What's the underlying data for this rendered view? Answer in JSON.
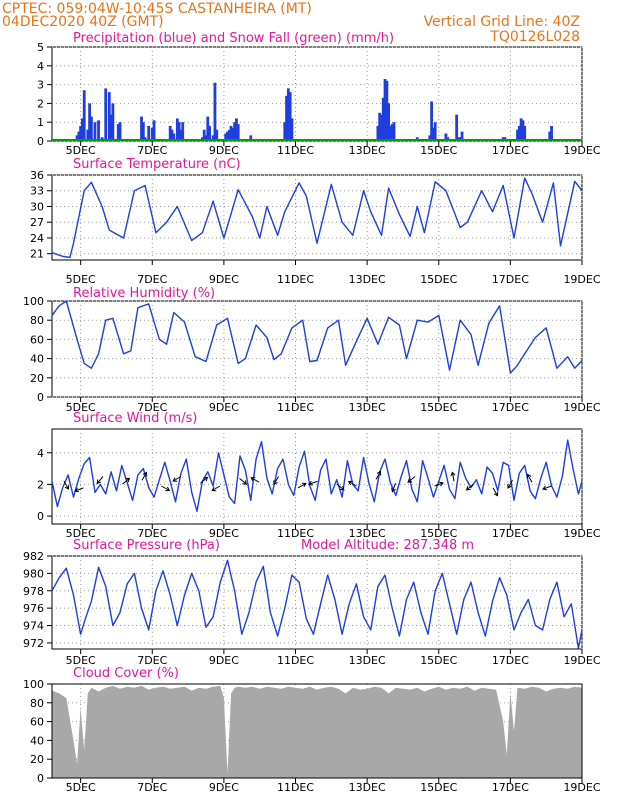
{
  "header": {
    "line1": "CPTEC:   059:04W-10:45S   CASTANHEIRA (MT)",
    "line2": "04DEC2020 40Z (GMT)",
    "grid_note": "Vertical Grid Line: 40Z",
    "code": "TQ0126L028"
  },
  "colors": {
    "series": "#1f3ee0",
    "snow": "#00a000",
    "cloud": "#a8a8a8",
    "title": "#e0189a",
    "header": "#e8741a"
  },
  "x_axis": {
    "ticks": [
      "5DEC",
      "7DEC",
      "9DEC",
      "11DEC",
      "13DEC",
      "15DEC",
      "17DEC",
      "19DEC"
    ],
    "tick_days": [
      5,
      7,
      9,
      11,
      13,
      15,
      17,
      19
    ],
    "range_days": [
      4.2,
      19.0
    ],
    "grid": true
  },
  "chart_data": [
    {
      "type": "bar",
      "title": "Precipitation (blue) and Snow Fall (green) (mm/h)",
      "ylim": [
        0,
        5
      ],
      "yticks": [
        "0",
        "1",
        "2",
        "3",
        "4",
        "5"
      ],
      "series": [
        {
          "name": "Precipitation",
          "x": [
            4.9,
            4.95,
            5.0,
            5.05,
            5.1,
            5.2,
            5.25,
            5.3,
            5.4,
            5.5,
            5.6,
            5.7,
            5.8,
            5.85,
            5.9,
            6.05,
            6.1,
            6.7,
            6.75,
            6.8,
            6.85,
            6.9,
            7.0,
            7.05,
            7.5,
            7.55,
            7.6,
            7.7,
            7.75,
            7.8,
            7.85,
            8.4,
            8.45,
            8.5,
            8.55,
            8.6,
            8.7,
            8.75,
            8.8,
            9.05,
            9.1,
            9.15,
            9.2,
            9.25,
            9.3,
            9.35,
            9.4,
            9.75,
            10.7,
            10.75,
            10.8,
            10.85,
            10.9,
            12.0,
            13.3,
            13.35,
            13.4,
            13.45,
            13.5,
            13.55,
            13.6,
            13.65,
            13.7,
            13.75,
            14.4,
            14.75,
            14.8,
            14.85,
            14.9,
            15.2,
            15.25,
            15.5,
            15.55,
            15.6,
            15.65,
            16.8,
            16.85,
            17.2,
            17.25,
            17.3,
            17.35,
            17.4,
            17.9,
            18.1,
            18.15
          ],
          "values": [
            0.3,
            0.5,
            0.8,
            1.2,
            2.7,
            0.6,
            2.0,
            1.3,
            1.0,
            1.1,
            0.2,
            2.8,
            2.6,
            1.4,
            2.0,
            0.9,
            1.0,
            1.3,
            1.0,
            0.2,
            0.1,
            0.8,
            0.7,
            1.1,
            0.8,
            0.6,
            0.4,
            1.2,
            1.0,
            0.6,
            1.0,
            0.2,
            0.6,
            0.3,
            1.3,
            0.8,
            0.3,
            3.1,
            0.6,
            0.4,
            0.5,
            0.6,
            0.8,
            0.7,
            1.0,
            1.2,
            0.9,
            0.3,
            1.0,
            2.4,
            2.8,
            2.6,
            1.2,
            0.1,
            0.8,
            1.5,
            1.4,
            2.3,
            3.3,
            3.2,
            2.0,
            0.8,
            0.9,
            1.0,
            0.2,
            0.3,
            2.1,
            0.7,
            1.0,
            0.4,
            0.2,
            1.4,
            0.2,
            0.2,
            0.5,
            0.2,
            0.2,
            0.6,
            0.8,
            1.2,
            1.1,
            0.8,
            0.1,
            0.5,
            0.8
          ]
        },
        {
          "name": "Snow Fall",
          "values": [
            0
          ]
        }
      ]
    },
    {
      "type": "line",
      "title": "Surface Temperature (nC)",
      "ylim": [
        19.8,
        36
      ],
      "yticks": [
        "21",
        "24",
        "27",
        "30",
        "33",
        "36"
      ],
      "x": [
        4.2,
        4.5,
        4.7,
        4.8,
        5.1,
        5.3,
        5.6,
        5.8,
        6.2,
        6.5,
        6.8,
        7.1,
        7.4,
        7.7,
        8.1,
        8.4,
        8.7,
        9.0,
        9.4,
        9.8,
        10.0,
        10.2,
        10.5,
        10.7,
        11.1,
        11.3,
        11.6,
        12.0,
        12.3,
        12.6,
        12.9,
        13.1,
        13.4,
        13.6,
        13.9,
        14.2,
        14.4,
        14.6,
        14.9,
        15.2,
        15.6,
        15.8,
        16.2,
        16.5,
        16.8,
        17.1,
        17.4,
        17.6,
        17.9,
        18.2,
        18.4,
        18.8,
        19.0
      ],
      "values": [
        21.2,
        20.5,
        20.3,
        23.0,
        33.0,
        34.6,
        30.0,
        25.5,
        24.0,
        33.0,
        34.0,
        25.0,
        27.0,
        30.0,
        23.5,
        25.0,
        31.0,
        24.0,
        33.2,
        28.0,
        24.0,
        30.0,
        24.5,
        29.0,
        34.5,
        32.0,
        23.0,
        34.2,
        27.0,
        24.5,
        33.0,
        29.0,
        24.5,
        33.5,
        28.5,
        24.3,
        30.0,
        25.0,
        34.7,
        33.0,
        26.0,
        27.0,
        33.0,
        29.0,
        34.0,
        24.0,
        35.4,
        32.5,
        27.0,
        34.5,
        22.5,
        34.8,
        33.0
      ]
    },
    {
      "type": "line",
      "title": "Relative Humidity (%)",
      "ylim": [
        0,
        100
      ],
      "yticks": [
        "0",
        "20",
        "40",
        "60",
        "80",
        "100"
      ],
      "x": [
        4.2,
        4.4,
        4.6,
        4.9,
        5.1,
        5.3,
        5.5,
        5.7,
        5.9,
        6.2,
        6.4,
        6.6,
        6.9,
        7.2,
        7.4,
        7.6,
        7.9,
        8.2,
        8.5,
        8.8,
        9.1,
        9.4,
        9.6,
        9.9,
        10.2,
        10.4,
        10.6,
        10.9,
        11.2,
        11.4,
        11.6,
        11.9,
        12.2,
        12.4,
        12.7,
        13.0,
        13.3,
        13.6,
        13.9,
        14.1,
        14.4,
        14.7,
        15.0,
        15.3,
        15.6,
        15.9,
        16.1,
        16.4,
        16.7,
        17.0,
        17.2,
        17.4,
        17.7,
        18.0,
        18.3,
        18.6,
        18.8,
        19.0
      ],
      "values": [
        85,
        95,
        100,
        60,
        35,
        30,
        45,
        80,
        82,
        45,
        48,
        93,
        97,
        60,
        55,
        88,
        78,
        42,
        37,
        75,
        82,
        35,
        40,
        75,
        62,
        39,
        45,
        72,
        80,
        37,
        38,
        72,
        80,
        33,
        58,
        82,
        55,
        83,
        75,
        40,
        80,
        78,
        85,
        28,
        80,
        65,
        33,
        77,
        95,
        25,
        33,
        45,
        62,
        72,
        30,
        42,
        30,
        38
      ]
    },
    {
      "type": "line",
      "title": "Surface Wind (m/s)",
      "ylim": [
        -0.5,
        5.5
      ],
      "yticks": [
        "0",
        "2",
        "4"
      ],
      "x": [
        4.2,
        4.35,
        4.5,
        4.65,
        4.8,
        4.95,
        5.1,
        5.25,
        5.4,
        5.55,
        5.7,
        5.85,
        6.0,
        6.15,
        6.3,
        6.45,
        6.6,
        6.75,
        6.9,
        7.05,
        7.2,
        7.35,
        7.5,
        7.65,
        7.8,
        7.95,
        8.1,
        8.25,
        8.4,
        8.55,
        8.7,
        8.85,
        9.0,
        9.15,
        9.3,
        9.45,
        9.6,
        9.75,
        9.9,
        10.05,
        10.2,
        10.35,
        10.5,
        10.65,
        10.8,
        10.95,
        11.1,
        11.25,
        11.4,
        11.55,
        11.7,
        11.85,
        12.0,
        12.15,
        12.3,
        12.45,
        12.6,
        12.75,
        12.9,
        13.05,
        13.2,
        13.35,
        13.5,
        13.65,
        13.8,
        13.95,
        14.1,
        14.25,
        14.4,
        14.55,
        14.7,
        14.85,
        15.0,
        15.15,
        15.3,
        15.45,
        15.6,
        15.75,
        15.9,
        16.05,
        16.2,
        16.35,
        16.5,
        16.65,
        16.8,
        16.95,
        17.1,
        17.25,
        17.4,
        17.55,
        17.7,
        17.85,
        18.0,
        18.15,
        18.3,
        18.45,
        18.6,
        18.75,
        18.9,
        19.0
      ],
      "values": [
        2.2,
        0.6,
        1.8,
        2.6,
        1.2,
        2.4,
        3.3,
        3.7,
        1.5,
        2.0,
        1.4,
        2.8,
        1.6,
        3.2,
        2.1,
        1.0,
        2.6,
        3.0,
        1.8,
        1.2,
        2.3,
        3.4,
        2.2,
        0.9,
        2.7,
        3.6,
        1.5,
        0.3,
        2.2,
        2.8,
        1.9,
        4.0,
        2.6,
        1.2,
        0.8,
        3.8,
        2.9,
        1.0,
        3.6,
        4.7,
        2.4,
        1.4,
        3.0,
        3.6,
        2.0,
        1.3,
        3.1,
        4.1,
        1.9,
        1.0,
        2.9,
        3.6,
        1.4,
        2.3,
        1.2,
        3.5,
        2.0,
        1.6,
        3.7,
        2.1,
        0.9,
        2.8,
        3.6,
        2.1,
        1.3,
        2.5,
        3.5,
        1.7,
        0.9,
        3.5,
        2.4,
        1.2,
        2.2,
        3.2,
        1.7,
        1.1,
        3.4,
        2.4,
        1.8,
        2.3,
        1.4,
        3.1,
        2.7,
        1.6,
        3.4,
        3.2,
        1.0,
        2.7,
        3.2,
        1.6,
        1.1,
        2.4,
        3.4,
        1.9,
        1.2,
        2.5,
        4.8,
        3.0,
        1.4,
        2.2
      ]
    },
    {
      "type": "line",
      "title": "Surface Pressure (hPa)",
      "annotation": "Model Altitude: 287.348 m",
      "ylim": [
        971.3,
        982
      ],
      "yticks": [
        "972",
        "974",
        "976",
        "978",
        "980",
        "982"
      ],
      "x": [
        4.2,
        4.4,
        4.6,
        4.8,
        5.0,
        5.15,
        5.3,
        5.5,
        5.7,
        5.9,
        6.1,
        6.3,
        6.5,
        6.7,
        6.9,
        7.1,
        7.3,
        7.5,
        7.7,
        7.9,
        8.1,
        8.3,
        8.5,
        8.7,
        8.9,
        9.1,
        9.3,
        9.5,
        9.7,
        9.9,
        10.1,
        10.3,
        10.5,
        10.7,
        10.9,
        11.1,
        11.3,
        11.5,
        11.7,
        11.9,
        12.1,
        12.3,
        12.5,
        12.7,
        12.9,
        13.1,
        13.3,
        13.5,
        13.7,
        13.9,
        14.1,
        14.3,
        14.5,
        14.7,
        14.9,
        15.1,
        15.3,
        15.5,
        15.7,
        15.9,
        16.1,
        16.3,
        16.5,
        16.7,
        16.9,
        17.1,
        17.3,
        17.5,
        17.7,
        17.9,
        18.1,
        18.3,
        18.5,
        18.7,
        18.9,
        19.0
      ],
      "values": [
        978.0,
        979.5,
        980.6,
        977.5,
        973.0,
        975.0,
        976.8,
        980.7,
        978.5,
        974.0,
        975.5,
        978.8,
        980.0,
        976.0,
        973.5,
        978.0,
        980.3,
        977.5,
        974.0,
        977.5,
        980.0,
        978.0,
        973.8,
        975.0,
        979.0,
        981.5,
        978.0,
        973.0,
        975.5,
        979.0,
        980.8,
        975.5,
        972.8,
        976.0,
        979.8,
        979.0,
        974.8,
        973.0,
        976.5,
        979.8,
        977.0,
        973.0,
        976.5,
        978.8,
        975.0,
        973.5,
        978.5,
        979.8,
        976.0,
        972.8,
        977.0,
        979.0,
        975.5,
        973.0,
        978.0,
        980.0,
        976.5,
        973.0,
        977.0,
        979.0,
        975.5,
        972.8,
        976.8,
        979.5,
        977.5,
        973.5,
        975.5,
        977.0,
        974.0,
        973.5,
        977.0,
        979.0,
        975.0,
        976.5,
        971.4,
        973.5
      ]
    },
    {
      "type": "area",
      "title": "Cloud Cover (%)",
      "ylim": [
        0,
        100
      ],
      "yticks": [
        "0",
        "20",
        "40",
        "60",
        "80",
        "100"
      ],
      "x": [
        4.2,
        4.4,
        4.6,
        4.8,
        4.9,
        5.0,
        5.1,
        5.2,
        5.3,
        5.5,
        5.7,
        5.9,
        6.1,
        6.3,
        6.5,
        6.7,
        6.9,
        7.1,
        7.3,
        7.5,
        7.7,
        7.9,
        8.1,
        8.3,
        8.5,
        8.7,
        8.9,
        9.0,
        9.1,
        9.2,
        9.3,
        9.4,
        9.6,
        9.8,
        10.0,
        10.2,
        10.4,
        10.6,
        10.8,
        11.0,
        11.2,
        11.4,
        11.6,
        11.8,
        12.0,
        12.2,
        12.4,
        12.6,
        12.8,
        13.0,
        13.2,
        13.4,
        13.6,
        13.8,
        14.0,
        14.2,
        14.4,
        14.6,
        14.8,
        15.0,
        15.2,
        15.4,
        15.6,
        15.8,
        16.0,
        16.2,
        16.4,
        16.6,
        16.8,
        16.9,
        17.0,
        17.1,
        17.2,
        17.4,
        17.6,
        17.8,
        18.0,
        18.2,
        18.4,
        18.6,
        18.8,
        19.0
      ],
      "values": [
        93,
        90,
        85,
        40,
        15,
        75,
        30,
        90,
        96,
        92,
        96,
        98,
        95,
        97,
        96,
        98,
        94,
        96,
        97,
        95,
        96,
        97,
        93,
        96,
        95,
        97,
        98,
        85,
        5,
        90,
        96,
        97,
        96,
        97,
        95,
        97,
        96,
        95,
        97,
        96,
        95,
        97,
        94,
        96,
        97,
        95,
        90,
        96,
        94,
        95,
        97,
        96,
        90,
        96,
        95,
        94,
        96,
        92,
        95,
        97,
        94,
        96,
        95,
        97,
        93,
        96,
        95,
        94,
        60,
        25,
        90,
        50,
        96,
        95,
        97,
        96,
        92,
        95,
        96,
        95,
        97,
        96
      ]
    }
  ]
}
